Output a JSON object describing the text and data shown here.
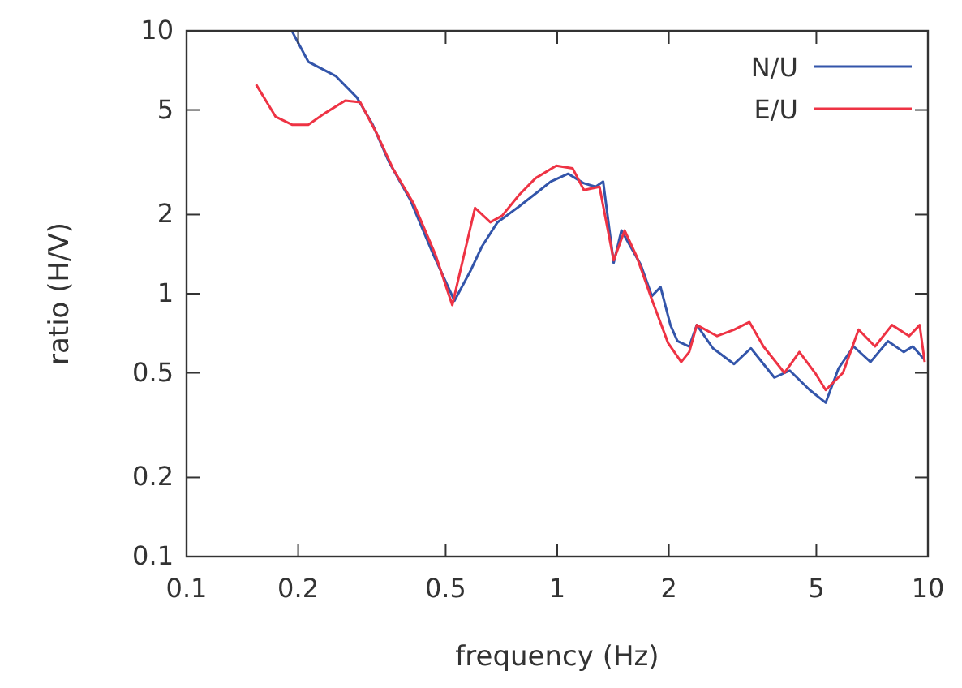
{
  "chart_data": {
    "type": "line",
    "xlabel": "frequency (Hz)",
    "ylabel": "ratio (H/V)",
    "log": "xy",
    "xlim": [
      0.1,
      10
    ],
    "ylim": [
      0.1,
      10
    ],
    "xticks": [
      0.1,
      0.2,
      0.5,
      1,
      2,
      5,
      10
    ],
    "yticks": [
      0.1,
      0.2,
      0.5,
      1,
      2,
      5,
      10
    ],
    "legend": "top right",
    "line_style": "solid",
    "marker": "none",
    "grid": false,
    "series": [
      {
        "name": "N/U",
        "color": "#3355aa",
        "x": [
          0.193,
          0.213,
          0.253,
          0.288,
          0.318,
          0.352,
          0.401,
          0.463,
          0.528,
          0.583,
          0.626,
          0.69,
          0.79,
          0.899,
          0.96,
          1.07,
          1.18,
          1.27,
          1.33,
          1.42,
          1.49,
          1.68,
          1.8,
          1.9,
          2.02,
          2.11,
          2.27,
          2.38,
          2.63,
          3.0,
          3.33,
          3.85,
          4.24,
          4.8,
          5.3,
          5.74,
          6.3,
          7.0,
          7.8,
          8.6,
          9.1,
          9.8
        ],
        "values": [
          9.9,
          7.63,
          6.72,
          5.58,
          4.39,
          3.16,
          2.28,
          1.41,
          0.94,
          1.22,
          1.51,
          1.87,
          2.15,
          2.48,
          2.67,
          2.86,
          2.63,
          2.55,
          2.67,
          1.31,
          1.74,
          1.29,
          0.98,
          1.06,
          0.76,
          0.66,
          0.63,
          0.76,
          0.62,
          0.54,
          0.62,
          0.48,
          0.51,
          0.43,
          0.385,
          0.52,
          0.63,
          0.55,
          0.66,
          0.6,
          0.63,
          0.56
        ]
      },
      {
        "name": "E/U",
        "color": "#ee3344",
        "x": [
          0.154,
          0.174,
          0.193,
          0.213,
          0.235,
          0.268,
          0.294,
          0.325,
          0.36,
          0.41,
          0.47,
          0.521,
          0.6,
          0.66,
          0.71,
          0.79,
          0.874,
          0.994,
          1.1,
          1.18,
          1.3,
          1.42,
          1.52,
          1.64,
          1.8,
          1.99,
          2.16,
          2.27,
          2.38,
          2.7,
          3.0,
          3.3,
          3.6,
          4.1,
          4.5,
          4.96,
          5.3,
          5.9,
          6.5,
          7.2,
          8.0,
          8.9,
          9.5,
          9.8
        ],
        "values": [
          6.25,
          4.71,
          4.39,
          4.39,
          4.84,
          5.43,
          5.35,
          4.1,
          3.0,
          2.2,
          1.4,
          0.905,
          2.12,
          1.87,
          1.98,
          2.38,
          2.75,
          3.07,
          3.0,
          2.48,
          2.55,
          1.34,
          1.74,
          1.38,
          0.95,
          0.65,
          0.55,
          0.6,
          0.76,
          0.69,
          0.73,
          0.78,
          0.63,
          0.5,
          0.6,
          0.5,
          0.43,
          0.5,
          0.73,
          0.63,
          0.76,
          0.69,
          0.76,
          0.55
        ]
      }
    ]
  }
}
